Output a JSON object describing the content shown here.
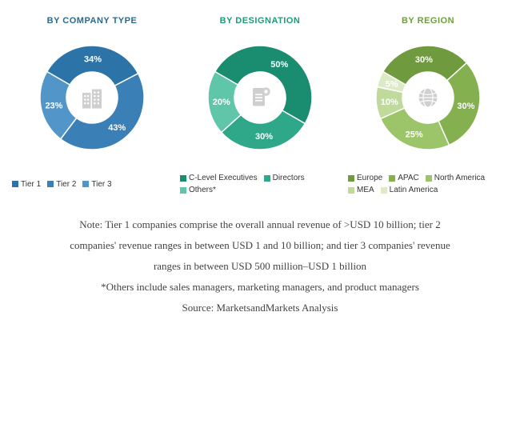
{
  "charts": [
    {
      "title": "BY COMPANY TYPE",
      "title_color": "#2a6a8f",
      "slices": [
        {
          "label": "34%",
          "value": 34,
          "color": "#2c73a8"
        },
        {
          "label": "43%",
          "value": 43,
          "color": "#3a7fb5"
        },
        {
          "label": "23%",
          "value": 23,
          "color": "#5296c9"
        }
      ],
      "icon": "buildings",
      "icon_color": "#cfcfcf",
      "legend": [
        {
          "label": "Tier 1",
          "color": "#2c73a8"
        },
        {
          "label": "Tier 2",
          "color": "#3a7fb5"
        },
        {
          "label": "Tier 3",
          "color": "#5296c9"
        }
      ]
    },
    {
      "title": "BY DESIGNATION",
      "title_color": "#1f9b7a",
      "slices": [
        {
          "label": "50%",
          "value": 50,
          "color": "#1a8c70"
        },
        {
          "label": "30%",
          "value": 30,
          "color": "#2fa88a"
        },
        {
          "label": "20%",
          "value": 20,
          "color": "#5fc6aa"
        }
      ],
      "icon": "document",
      "icon_color": "#cfcfcf",
      "legend": [
        {
          "label": "C-Level Executives",
          "color": "#1a8c70"
        },
        {
          "label": "Directors",
          "color": "#2fa88a"
        },
        {
          "label": "Others*",
          "color": "#5fc6aa"
        }
      ]
    },
    {
      "title": "BY REGION",
      "title_color": "#6ea03a",
      "slices": [
        {
          "label": "30%",
          "value": 30,
          "color": "#6f9a3e"
        },
        {
          "label": "30%",
          "value": 30,
          "color": "#84b04f"
        },
        {
          "label": "25%",
          "value": 25,
          "color": "#9cc468"
        },
        {
          "label": "10%",
          "value": 10,
          "color": "#bfda9b"
        },
        {
          "label": "5%",
          "value": 5,
          "color": "#dcebc6"
        }
      ],
      "icon": "globe",
      "icon_color": "#cfcfcf",
      "legend": [
        {
          "label": "Europe",
          "color": "#6f9a3e"
        },
        {
          "label": "APAC",
          "color": "#84b04f"
        },
        {
          "label": "North America",
          "color": "#9cc468"
        },
        {
          "label": "MEA",
          "color": "#bfda9b"
        },
        {
          "label": "Latin America",
          "color": "#dcebc6"
        }
      ]
    }
  ],
  "notes": {
    "line1": "Note: Tier 1 companies comprise the overall annual revenue of >USD 10 billion; tier 2",
    "line2": "companies' revenue ranges in between USD 1 and 10 billion; and tier 3 companies' revenue",
    "line3": "ranges in between USD 500 million–USD 1 billion",
    "line4": "*Others include sales managers, marketing managers, and product managers",
    "source": "Source: MarketsandMarkets Analysis"
  },
  "donut": {
    "outer_r": 65,
    "inner_r": 32,
    "start_angle_deg": -60,
    "background": "#ffffff"
  }
}
